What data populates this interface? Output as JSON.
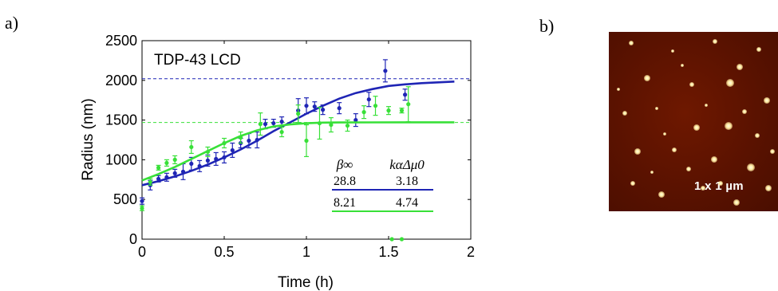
{
  "panels": {
    "a_label": "a)",
    "b_label": "b)"
  },
  "micrograph": {
    "scale_label": "1 x 1 µm",
    "background_color": "#5a1200"
  },
  "chart_data": {
    "type": "scatter",
    "title": "TDP-43 LCD",
    "xlabel": "Time (h)",
    "ylabel": "Radius (nm)",
    "xlim": [
      0,
      2
    ],
    "ylim": [
      0,
      2500
    ],
    "xticks": [
      "0",
      "0.5",
      "1",
      "1.5",
      "2"
    ],
    "yticks": [
      "0",
      "500",
      "1000",
      "1500",
      "2000",
      "2500"
    ],
    "grid": false,
    "reference_lines": [
      {
        "series": "blue",
        "y": 2020,
        "style": "dashed"
      },
      {
        "series": "green",
        "y": 1470,
        "style": "dashed"
      }
    ],
    "series": [
      {
        "color": "#1f25b5",
        "points": [
          {
            "x": 0.0,
            "y": 480,
            "err": 40
          },
          {
            "x": 0.05,
            "y": 680,
            "err": 60
          },
          {
            "x": 0.1,
            "y": 760,
            "err": 40
          },
          {
            "x": 0.15,
            "y": 780,
            "err": 50
          },
          {
            "x": 0.2,
            "y": 830,
            "err": 50
          },
          {
            "x": 0.25,
            "y": 850,
            "err": 100
          },
          {
            "x": 0.3,
            "y": 950,
            "err": 80
          },
          {
            "x": 0.35,
            "y": 920,
            "err": 70
          },
          {
            "x": 0.4,
            "y": 990,
            "err": 70
          },
          {
            "x": 0.45,
            "y": 1010,
            "err": 80
          },
          {
            "x": 0.5,
            "y": 1030,
            "err": 70
          },
          {
            "x": 0.55,
            "y": 1120,
            "err": 90
          },
          {
            "x": 0.6,
            "y": 1210,
            "err": 60
          },
          {
            "x": 0.65,
            "y": 1240,
            "err": 90
          },
          {
            "x": 0.7,
            "y": 1250,
            "err": 100
          },
          {
            "x": 0.75,
            "y": 1450,
            "err": 60
          },
          {
            "x": 0.8,
            "y": 1460,
            "err": 50
          },
          {
            "x": 0.85,
            "y": 1480,
            "err": 60
          },
          {
            "x": 0.95,
            "y": 1620,
            "err": 150
          },
          {
            "x": 1.0,
            "y": 1680,
            "err": 100
          },
          {
            "x": 1.05,
            "y": 1670,
            "err": 60
          },
          {
            "x": 1.1,
            "y": 1630,
            "err": 60
          },
          {
            "x": 1.2,
            "y": 1650,
            "err": 70
          },
          {
            "x": 1.3,
            "y": 1500,
            "err": 80
          },
          {
            "x": 1.38,
            "y": 1760,
            "err": 90
          },
          {
            "x": 1.48,
            "y": 2120,
            "err": 140
          },
          {
            "x": 1.6,
            "y": 1820,
            "err": 70
          }
        ],
        "fit": [
          [
            0,
            680
          ],
          [
            0.1,
            730
          ],
          [
            0.2,
            790
          ],
          [
            0.3,
            860
          ],
          [
            0.4,
            940
          ],
          [
            0.5,
            1030
          ],
          [
            0.6,
            1130
          ],
          [
            0.7,
            1240
          ],
          [
            0.8,
            1360
          ],
          [
            0.9,
            1470
          ],
          [
            1.0,
            1580
          ],
          [
            1.1,
            1680
          ],
          [
            1.2,
            1770
          ],
          [
            1.3,
            1840
          ],
          [
            1.4,
            1890
          ],
          [
            1.5,
            1930
          ],
          [
            1.6,
            1950
          ],
          [
            1.7,
            1965
          ],
          [
            1.8,
            1975
          ],
          [
            1.9,
            1985
          ]
        ]
      },
      {
        "color": "#38e038",
        "points": [
          {
            "x": 0.0,
            "y": 390,
            "err": 30
          },
          {
            "x": 0.05,
            "y": 720,
            "err": 40
          },
          {
            "x": 0.1,
            "y": 900,
            "err": 30
          },
          {
            "x": 0.15,
            "y": 960,
            "err": 40
          },
          {
            "x": 0.2,
            "y": 1000,
            "err": 50
          },
          {
            "x": 0.3,
            "y": 1160,
            "err": 80
          },
          {
            "x": 0.4,
            "y": 1100,
            "err": 60
          },
          {
            "x": 0.5,
            "y": 1210,
            "err": 60
          },
          {
            "x": 0.6,
            "y": 1280,
            "err": 70
          },
          {
            "x": 0.72,
            "y": 1450,
            "err": 140
          },
          {
            "x": 0.85,
            "y": 1350,
            "err": 60
          },
          {
            "x": 0.95,
            "y": 1580,
            "err": 110
          },
          {
            "x": 1.0,
            "y": 1240,
            "err": 200
          },
          {
            "x": 1.08,
            "y": 1460,
            "err": 200
          },
          {
            "x": 1.15,
            "y": 1440,
            "err": 90
          },
          {
            "x": 1.25,
            "y": 1430,
            "err": 70
          },
          {
            "x": 1.35,
            "y": 1600,
            "err": 80
          },
          {
            "x": 1.42,
            "y": 1680,
            "err": 120
          },
          {
            "x": 1.5,
            "y": 1620,
            "err": 50
          },
          {
            "x": 1.58,
            "y": 1620,
            "err": 30
          },
          {
            "x": 1.62,
            "y": 1700,
            "err": 220
          },
          {
            "x": 1.52,
            "y": 0,
            "err": 0
          },
          {
            "x": 1.58,
            "y": 0,
            "err": 0
          }
        ],
        "fit": [
          [
            0,
            740
          ],
          [
            0.1,
            820
          ],
          [
            0.2,
            910
          ],
          [
            0.3,
            1010
          ],
          [
            0.4,
            1110
          ],
          [
            0.5,
            1210
          ],
          [
            0.6,
            1300
          ],
          [
            0.7,
            1370
          ],
          [
            0.8,
            1420
          ],
          [
            0.9,
            1445
          ],
          [
            1.0,
            1460
          ],
          [
            1.1,
            1468
          ],
          [
            1.2,
            1470
          ],
          [
            1.4,
            1471
          ],
          [
            1.6,
            1472
          ],
          [
            1.9,
            1472
          ]
        ]
      }
    ],
    "inset_table": {
      "headers": [
        "β∞",
        "kαΔμ0"
      ],
      "rows": [
        {
          "series": "blue",
          "values": [
            "28.8",
            "3.18"
          ]
        },
        {
          "series": "green",
          "values": [
            "8.21",
            "4.74"
          ]
        }
      ]
    }
  }
}
